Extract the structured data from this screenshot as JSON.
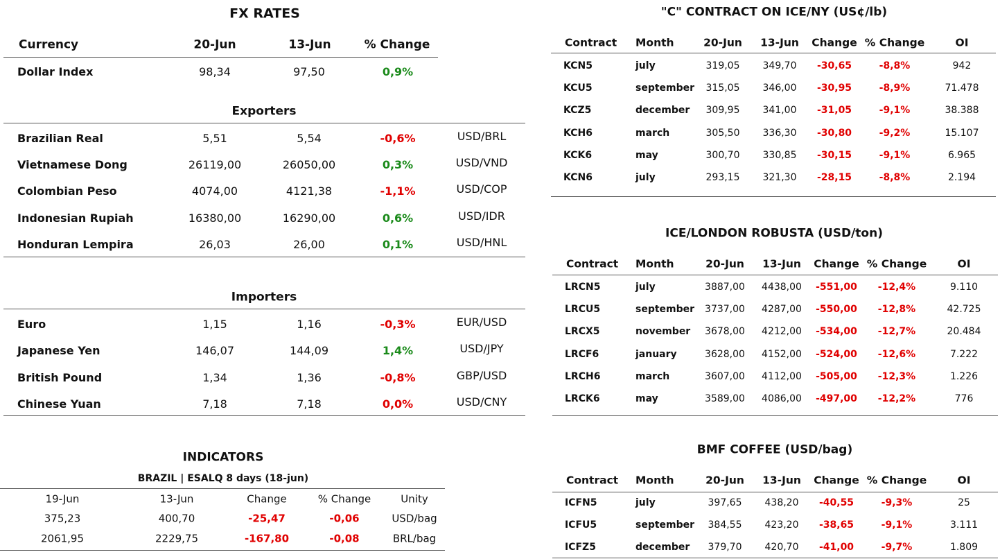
{
  "fx": {
    "title": "FX RATES",
    "header": [
      "Currency",
      "20-Jun",
      "13-Jun",
      "% Change"
    ],
    "rows": [
      [
        "Dollar Index",
        "98,34",
        "97,50",
        "0,9%"
      ]
    ]
  },
  "exporters": {
    "title": "Exporters",
    "rows": [
      [
        "Brazilian Real",
        "5,51",
        "5,54",
        "-0,6%",
        "USD/BRL"
      ],
      [
        "Vietnamese Dong",
        "26119,00",
        "26050,00",
        "0,3%",
        "USD/VND"
      ],
      [
        "Colombian Peso",
        "4074,00",
        "4121,38",
        "-1,1%",
        "USD/COP"
      ],
      [
        "Indonesian Rupiah",
        "16380,00",
        "16290,00",
        "0,6%",
        "USD/IDR"
      ],
      [
        "Honduran Lempira",
        "26,03",
        "26,00",
        "0,1%",
        "USD/HNL"
      ]
    ]
  },
  "importers": {
    "title": "Importers",
    "rows": [
      [
        "Euro",
        "1,15",
        "1,16",
        "-0,3%",
        "EUR/USD"
      ],
      [
        "Japanese Yen",
        "146,07",
        "144,09",
        "1,4%",
        "USD/JPY"
      ],
      [
        "British Pound",
        "1,34",
        "1,36",
        "-0,8%",
        "GBP/USD"
      ],
      [
        "Chinese Yuan",
        "7,18",
        "7,18",
        "0,0%",
        "USD/CNY"
      ]
    ]
  },
  "indicators": {
    "title": "INDICATORS",
    "subtitle": "BRAZIL | ESALQ 8 days (18-jun)",
    "header": [
      "19-Jun",
      "13-Jun",
      "Change",
      "% Change",
      "Unity"
    ],
    "rows": [
      [
        "375,23",
        "400,70",
        "-25,47",
        "-0,06",
        "USD/bag"
      ],
      [
        "2061,95",
        "2229,75",
        "-167,80",
        "-0,08",
        "BRL/bag"
      ]
    ]
  },
  "c_contract": {
    "title": "\"C\" CONTRACT ON ICE/NY (US¢/lb)",
    "header": [
      "Contract",
      "Month",
      "20-Jun",
      "13-Jun",
      "Change",
      "% Change",
      "OI"
    ],
    "rows": [
      [
        "KCN5",
        "july",
        "319,05",
        "349,70",
        "-30,65",
        "-8,8%",
        "942"
      ],
      [
        "KCU5",
        "september",
        "315,05",
        "346,00",
        "-30,95",
        "-8,9%",
        "71.478"
      ],
      [
        "KCZ5",
        "december",
        "309,95",
        "341,00",
        "-31,05",
        "-9,1%",
        "38.388"
      ],
      [
        "KCH6",
        "march",
        "305,50",
        "336,30",
        "-30,80",
        "-9,2%",
        "15.107"
      ],
      [
        "KCK6",
        "may",
        "300,70",
        "330,85",
        "-30,15",
        "-9,1%",
        "6.965"
      ],
      [
        "KCN6",
        "july",
        "293,15",
        "321,30",
        "-28,15",
        "-8,8%",
        "2.194"
      ]
    ]
  },
  "robusta": {
    "title": "ICE/LONDON ROBUSTA (USD/ton)",
    "header": [
      "Contract",
      "Month",
      "20-Jun",
      "13-Jun",
      "Change",
      "% Change",
      "OI"
    ],
    "rows": [
      [
        "LRCN5",
        "july",
        "3887,00",
        "4438,00",
        "-551,00",
        "-12,4%",
        "9.110"
      ],
      [
        "LRCU5",
        "september",
        "3737,00",
        "4287,00",
        "-550,00",
        "-12,8%",
        "42.725"
      ],
      [
        "LRCX5",
        "november",
        "3678,00",
        "4212,00",
        "-534,00",
        "-12,7%",
        "20.484"
      ],
      [
        "LRCF6",
        "january",
        "3628,00",
        "4152,00",
        "-524,00",
        "-12,6%",
        "7.222"
      ],
      [
        "LRCH6",
        "march",
        "3607,00",
        "4112,00",
        "-505,00",
        "-12,3%",
        "1.226"
      ],
      [
        "LRCK6",
        "may",
        "3589,00",
        "4086,00",
        "-497,00",
        "-12,2%",
        "776"
      ]
    ]
  },
  "bmf": {
    "title": "BMF COFFEE (USD/bag)",
    "header": [
      "Contract",
      "Month",
      "20-Jun",
      "13-Jun",
      "Change",
      "% Change",
      "OI"
    ],
    "rows": [
      [
        "ICFN5",
        "july",
        "397,65",
        "438,20",
        "-40,55",
        "-9,3%",
        "25"
      ],
      [
        "ICFU5",
        "september",
        "384,55",
        "423,20",
        "-38,65",
        "-9,1%",
        "3.111"
      ],
      [
        "ICFZ5",
        "december",
        "379,70",
        "420,70",
        "-41,00",
        "-9,7%",
        "1.809"
      ]
    ]
  }
}
